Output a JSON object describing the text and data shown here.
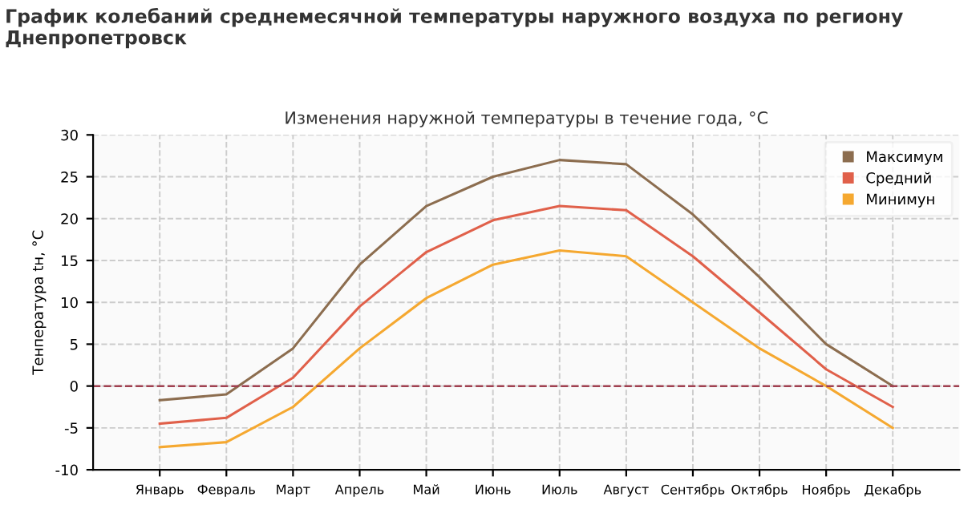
{
  "chart_data": {
    "type": "line",
    "title": "График колебаний среднемесячной температуры наружного воздуха по региону Днепропетровск",
    "subtitle": "Изменения наружной температуры в течение года, °C",
    "ylabel": "Тенпература tн, °C",
    "categories": [
      "Январь",
      "Февраль",
      "Март",
      "Апрель",
      "Май",
      "Июнь",
      "Июль",
      "Август",
      "Сентябрь",
      "Октябрь",
      "Ноябрь",
      "Декабрь"
    ],
    "series": [
      {
        "name": "Максимум",
        "color": "#8c6d4f",
        "values": [
          -1.7,
          -1,
          4.5,
          14.5,
          21.5,
          25,
          27,
          26.5,
          20.5,
          13,
          5,
          0
        ]
      },
      {
        "name": "Средний",
        "color": "#e0604a",
        "values": [
          -4.5,
          -3.8,
          1,
          9.5,
          16,
          19.8,
          21.5,
          21,
          15.5,
          8.8,
          2,
          -2.5
        ]
      },
      {
        "name": "Минимун",
        "color": "#f5a830",
        "values": [
          -7.3,
          -6.7,
          -2.5,
          4.5,
          10.5,
          14.5,
          16.2,
          15.5,
          10,
          4.5,
          0,
          -5
        ]
      }
    ],
    "ylim": [
      -10,
      30
    ],
    "yticks": [
      -10,
      -5,
      0,
      5,
      10,
      15,
      20,
      25,
      30
    ],
    "ref_lines": [
      {
        "axis": "y",
        "value": 0,
        "color": "#a04050",
        "line_style": "dashed"
      }
    ],
    "grid": true,
    "legend": "top right",
    "marker": "none",
    "line_style": "solid"
  }
}
